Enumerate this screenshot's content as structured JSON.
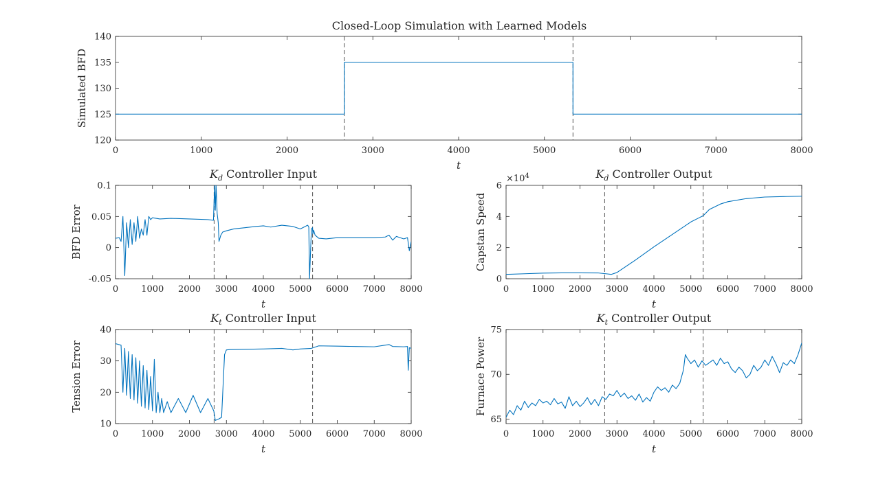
{
  "figure": {
    "title": "Closed-Loop Simulation with Learned Models",
    "line_color": "#0072BD",
    "marker_color": "#404040",
    "marker_x": [
      2667,
      5333
    ]
  },
  "chart_data": [
    {
      "id": "top",
      "type": "line",
      "title": "",
      "xlabel": "t",
      "ylabel": "Simulated BFD",
      "xlim": [
        0,
        8000
      ],
      "ylim": [
        120,
        140
      ],
      "xticks": [
        "0",
        "1000",
        "2000",
        "3000",
        "4000",
        "5000",
        "6000",
        "7000",
        "8000"
      ],
      "yticks": [
        "120",
        "125",
        "130",
        "135",
        "140"
      ],
      "series": [
        {
          "x": [
            0,
            2667,
            2667,
            5333,
            5333,
            8000
          ],
          "y": [
            125,
            125,
            135,
            135,
            125,
            125
          ]
        }
      ]
    },
    {
      "id": "kd-input",
      "type": "line",
      "title_sym": "K",
      "title_sub": "d",
      "title_rest": " Controller Input",
      "xlabel": "t",
      "ylabel": "BFD Error",
      "xlim": [
        0,
        8000
      ],
      "ylim": [
        -0.05,
        0.1
      ],
      "xticks": [
        "0",
        "1000",
        "2000",
        "3000",
        "4000",
        "5000",
        "6000",
        "7000",
        "8000"
      ],
      "yticks": [
        "-0.05",
        "0",
        "0.05",
        "0.1"
      ],
      "series": [
        {
          "x": [
            0,
            100,
            150,
            200,
            250,
            300,
            350,
            400,
            450,
            500,
            550,
            600,
            650,
            700,
            750,
            800,
            850,
            900,
            950,
            1000,
            1200,
            1500,
            2000,
            2500,
            2650,
            2680,
            2700,
            2720,
            2750,
            2780,
            2800,
            2850,
            2900,
            3000,
            3200,
            3500,
            3800,
            4000,
            4200,
            4500,
            4800,
            5000,
            5200,
            5230,
            5250,
            5300,
            5330,
            5340,
            5360,
            5400,
            5500,
            5700,
            6000,
            6500,
            7000,
            7300,
            7400,
            7500,
            7600,
            7800,
            7900,
            7950,
            8000
          ],
          "y": [
            0.015,
            0.016,
            0.01,
            0.05,
            -0.045,
            0.04,
            0.0,
            0.045,
            0.005,
            0.04,
            0.01,
            0.05,
            0.015,
            0.03,
            0.02,
            0.045,
            0.02,
            0.05,
            0.045,
            0.048,
            0.046,
            0.047,
            0.046,
            0.045,
            0.044,
            0.1,
            0.06,
            0.1,
            0.055,
            0.04,
            0.01,
            0.02,
            0.025,
            0.027,
            0.03,
            0.032,
            0.034,
            0.035,
            0.033,
            0.036,
            0.034,
            0.03,
            0.036,
            0.033,
            -0.05,
            0.03,
            0.032,
            0.022,
            0.028,
            0.02,
            0.015,
            0.014,
            0.016,
            0.016,
            0.016,
            0.017,
            0.02,
            0.012,
            0.018,
            0.014,
            0.016,
            -0.005,
            0.01
          ]
        }
      ]
    },
    {
      "id": "kd-output",
      "type": "line",
      "title_sym": "K",
      "title_sub": "d",
      "title_rest": " Controller Output",
      "xlabel": "t",
      "ylabel": "Capstan Speed",
      "exponent_base": "×10",
      "exponent_power": "4",
      "xlim": [
        0,
        8000
      ],
      "ylim": [
        0,
        6
      ],
      "xticks": [
        "0",
        "1000",
        "2000",
        "3000",
        "4000",
        "5000",
        "6000",
        "7000",
        "8000"
      ],
      "yticks": [
        "0",
        "2",
        "4",
        "6"
      ],
      "series": [
        {
          "x": [
            0,
            500,
            1000,
            1500,
            2000,
            2500,
            2700,
            2850,
            3000,
            3500,
            4000,
            4500,
            5000,
            5333,
            5500,
            5800,
            6000,
            6500,
            7000,
            7500,
            8000
          ],
          "y": [
            0.28,
            0.32,
            0.36,
            0.38,
            0.38,
            0.37,
            0.32,
            0.28,
            0.4,
            1.2,
            2.05,
            2.85,
            3.65,
            4.05,
            4.45,
            4.8,
            4.95,
            5.15,
            5.25,
            5.28,
            5.3
          ]
        }
      ]
    },
    {
      "id": "kt-input",
      "type": "line",
      "title_sym": "K",
      "title_sub": "t",
      "title_rest": " Controller Input",
      "xlabel": "t",
      "ylabel": "Tension Error",
      "xlim": [
        0,
        8000
      ],
      "ylim": [
        10,
        40
      ],
      "xticks": [
        "0",
        "1000",
        "2000",
        "3000",
        "4000",
        "5000",
        "6000",
        "7000",
        "8000"
      ],
      "yticks": [
        "10",
        "20",
        "30",
        "40"
      ],
      "series": [
        {
          "x": [
            0,
            150,
            200,
            250,
            300,
            350,
            400,
            450,
            500,
            550,
            600,
            650,
            700,
            750,
            800,
            850,
            900,
            950,
            1000,
            1050,
            1100,
            1150,
            1200,
            1250,
            1300,
            1400,
            1500,
            1700,
            1900,
            2100,
            2300,
            2500,
            2660,
            2700,
            2800,
            2870,
            2950,
            3000,
            3100,
            3500,
            4000,
            4500,
            4800,
            5000,
            5300,
            5500,
            6000,
            6500,
            7000,
            7400,
            7500,
            7800,
            7900,
            7920,
            7950,
            8000
          ],
          "y": [
            35.5,
            35.0,
            20.0,
            34.0,
            19.0,
            33.0,
            18.0,
            32.0,
            17.5,
            31.0,
            16.5,
            30.0,
            15.5,
            28.5,
            15.0,
            27.0,
            14.5,
            25.0,
            14.0,
            30.5,
            13.5,
            20.0,
            13.5,
            18.0,
            13.5,
            17.0,
            13.5,
            18.0,
            13.5,
            19.0,
            13.5,
            18.0,
            14.0,
            11.0,
            11.5,
            12.0,
            32.0,
            33.5,
            33.6,
            33.7,
            33.8,
            34.0,
            33.5,
            33.8,
            34.0,
            34.8,
            34.7,
            34.6,
            34.5,
            35.2,
            34.6,
            34.5,
            34.6,
            27.0,
            34.2,
            34.0
          ]
        }
      ]
    },
    {
      "id": "kt-output",
      "type": "line",
      "title_sym": "K",
      "title_sub": "t",
      "title_rest": " Controller Output",
      "xlabel": "t",
      "ylabel": "Furnace Power",
      "xlim": [
        0,
        8000
      ],
      "ylim": [
        64.5,
        75
      ],
      "xticks": [
        "0",
        "1000",
        "2000",
        "3000",
        "4000",
        "5000",
        "6000",
        "7000",
        "8000"
      ],
      "yticks": [
        "65",
        "70",
        "75"
      ],
      "series": [
        {
          "x": [
            0,
            100,
            200,
            300,
            400,
            500,
            600,
            700,
            800,
            900,
            1000,
            1100,
            1200,
            1300,
            1400,
            1500,
            1600,
            1700,
            1800,
            1900,
            2000,
            2100,
            2200,
            2300,
            2400,
            2500,
            2600,
            2700,
            2800,
            2900,
            3000,
            3100,
            3200,
            3300,
            3400,
            3500,
            3600,
            3700,
            3800,
            3900,
            4000,
            4100,
            4200,
            4300,
            4400,
            4500,
            4600,
            4700,
            4800,
            4850,
            4900,
            5000,
            5100,
            5200,
            5300,
            5400,
            5500,
            5600,
            5700,
            5800,
            5900,
            6000,
            6100,
            6200,
            6300,
            6400,
            6500,
            6600,
            6700,
            6800,
            6900,
            7000,
            7100,
            7200,
            7300,
            7400,
            7500,
            7600,
            7700,
            7800,
            7900,
            8000
          ],
          "y": [
            65.2,
            66.0,
            65.5,
            66.5,
            66.0,
            67.0,
            66.3,
            66.8,
            66.5,
            67.2,
            66.8,
            67.0,
            66.6,
            67.3,
            66.7,
            66.9,
            66.2,
            67.5,
            66.5,
            67.0,
            66.4,
            66.8,
            67.4,
            66.6,
            67.2,
            66.5,
            67.5,
            67.2,
            67.8,
            67.6,
            68.2,
            67.5,
            67.9,
            67.3,
            67.6,
            67.1,
            67.8,
            66.9,
            67.4,
            67.0,
            68.0,
            68.6,
            68.2,
            68.5,
            68.0,
            68.8,
            68.4,
            69.0,
            70.5,
            72.2,
            71.8,
            71.2,
            71.6,
            70.8,
            71.5,
            71.0,
            71.3,
            71.6,
            71.0,
            71.8,
            71.2,
            71.4,
            70.6,
            70.2,
            70.8,
            70.4,
            69.6,
            70.0,
            71.0,
            70.4,
            70.8,
            71.6,
            71.0,
            72.0,
            71.2,
            70.2,
            71.3,
            71.0,
            71.6,
            71.2,
            72.2,
            73.5
          ]
        }
      ]
    }
  ]
}
